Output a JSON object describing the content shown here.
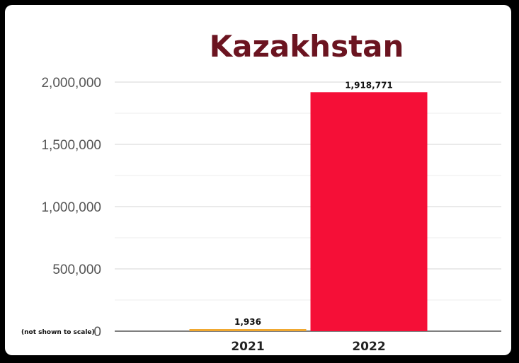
{
  "chart_data": {
    "type": "bar",
    "title": "Kazakhstan",
    "categories": [
      "2021",
      "2022"
    ],
    "values": [
      1936,
      1918771
    ],
    "data_labels": [
      "1,936",
      "1,918,771"
    ],
    "bar_colors": [
      "#f0a830",
      "#f50f37"
    ],
    "ylim": [
      0,
      2000000
    ],
    "yticks": [
      0,
      500000,
      1000000,
      1500000,
      2000000
    ],
    "ytick_labels": [
      "0",
      "500,000",
      "1,000,000",
      "1,500,000",
      "2,000,000"
    ],
    "note": "(not shown to scale)",
    "xlabel": "",
    "ylabel": "",
    "grid": true
  }
}
